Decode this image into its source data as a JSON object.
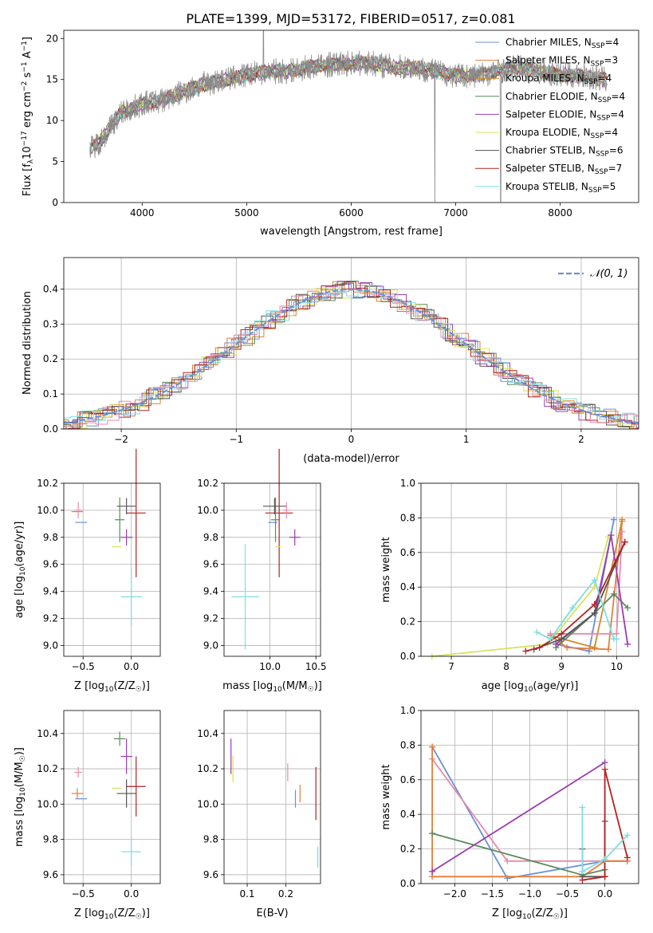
{
  "title": "PLATE=1399, MJD=53172, FIBERID=0517, z=0.081",
  "colors": {
    "Chabrier MILES": "#6b8fd6",
    "Salpeter MILES": "#e77d3a",
    "Kroupa MILES": "#d08a2a",
    "Chabrier ELODIE": "#5a8a5a",
    "Salpeter ELODIE": "#9a3cb0",
    "Kroupa ELODIE": "#d7e25a",
    "Chabrier STELIB": "#555555",
    "Salpeter STELIB": "#b22222",
    "Kroupa STELIB": "#80dce0",
    "Pink": "#e88aaa",
    "Gray": "#8a8a8a"
  },
  "chart_data": [
    {
      "type": "line",
      "xlabel": "wavelength [Angstrom, rest frame]",
      "ylabel_text": "Flux [f",
      "ylabel_sub": "λ",
      "ylabel_rest": "10",
      "ylabel_sup1": "−17",
      "ylabel_units": " erg cm",
      "ylabel_sup2": "−2",
      "ylabel_s": " s",
      "ylabel_sup3": "−1",
      "ylabel_A": " A",
      "ylabel_sup4": "−1",
      "ylabel_end": "]",
      "xlim": [
        3250,
        8750
      ],
      "ylim": [
        0,
        21
      ],
      "xticks": [
        4000,
        5000,
        6000,
        7000,
        8000
      ],
      "yticks": [
        0,
        5,
        10,
        15,
        20
      ],
      "legend": [
        {
          "name": "Chabrier MILES",
          "n": "4"
        },
        {
          "name": "Salpeter MILES",
          "n": "3"
        },
        {
          "name": "Kroupa MILES",
          "n": "4"
        },
        {
          "name": "Chabrier ELODIE",
          "n": "4"
        },
        {
          "name": "Salpeter ELODIE",
          "n": "4"
        },
        {
          "name": "Kroupa ELODIE",
          "n": "4"
        },
        {
          "name": "Chabrier STELIB",
          "n": "6"
        },
        {
          "name": "Salpeter STELIB",
          "n": "7"
        },
        {
          "name": "Kroupa STELIB",
          "n": "5"
        }
      ],
      "legend_nssp": "N",
      "legend_nssp_sub": "SSP",
      "continuum": [
        [
          3500,
          6.5
        ],
        [
          3600,
          7.5
        ],
        [
          3800,
          11
        ],
        [
          4000,
          12
        ],
        [
          4200,
          12.5
        ],
        [
          4400,
          13.5
        ],
        [
          4600,
          14.5
        ],
        [
          4800,
          15
        ],
        [
          5000,
          15.5
        ],
        [
          5200,
          16
        ],
        [
          5400,
          16
        ],
        [
          5600,
          16.5
        ],
        [
          5800,
          16.8
        ],
        [
          6000,
          17
        ],
        [
          6200,
          17
        ],
        [
          6400,
          16.5
        ],
        [
          6600,
          16.5
        ],
        [
          6800,
          16
        ],
        [
          7000,
          15.5
        ],
        [
          7200,
          15.5
        ],
        [
          7400,
          16
        ],
        [
          7600,
          16.5
        ],
        [
          7800,
          16
        ],
        [
          8000,
          15.5
        ],
        [
          8200,
          15.5
        ],
        [
          8400,
          15
        ]
      ]
    },
    {
      "type": "bar",
      "xlabel": "(data-model)/error",
      "ylabel": "Normed distribution",
      "xlim": [
        -2.5,
        2.5
      ],
      "ylim": [
        0,
        0.49
      ],
      "xticks": [
        -2,
        -1,
        0,
        1,
        2
      ],
      "xtick_labels": [
        "−2",
        "−1",
        "0",
        "1",
        "2"
      ],
      "yticks": [
        0.0,
        0.1,
        0.2,
        0.3,
        0.4
      ],
      "ytick_labels": [
        "0.0",
        "0.1",
        "0.2",
        "0.3",
        "0.4"
      ],
      "legend": "𝒩(0, 1)"
    },
    {
      "type": "scatter",
      "xlabel": "Z [log",
      "xlabel_sub": "10",
      "xlabel_end": "(Z/Z",
      "xlabel_sub2": "☉",
      "xlabel_end2": ")]",
      "ylabel": "age  [log",
      "ylabel_sub": "10",
      "ylabel_end": "(age/yr)]",
      "xlim": [
        -0.7,
        0.3
      ],
      "ylim": [
        8.92,
        10.2
      ],
      "xticks": [
        -0.5,
        0.0
      ],
      "xtick_labels": [
        "−0.5",
        "0.0"
      ],
      "yticks": [
        9.0,
        9.2,
        9.4,
        9.6,
        9.8,
        10.0,
        10.2
      ],
      "ytick_labels": [
        "9.0",
        "9.2",
        "9.4",
        "9.6",
        "9.8",
        "10.0",
        "10.2"
      ],
      "points": [
        {
          "c": "Chabrier MILES",
          "x": -0.52,
          "xe": 0.12,
          "y": 9.91,
          "ye": 0.0
        },
        {
          "c": "Salpeter MILES",
          "x": -0.56,
          "xe": 0.12,
          "y": 9.99,
          "ye": 0.0
        },
        {
          "c": "Pink",
          "x": -0.55,
          "xe": 0.08,
          "y": 10.0,
          "ye": 0.12
        },
        {
          "c": "Kroupa ELODIE",
          "x": -0.15,
          "xe": 0.1,
          "y": 9.73,
          "ye": 0.0
        },
        {
          "c": "Chabrier ELODIE",
          "x": -0.12,
          "xe": 0.1,
          "y": 9.93,
          "ye": 0.33
        },
        {
          "c": "Salpeter ELODIE",
          "x": -0.05,
          "xe": 0.12,
          "y": 9.8,
          "ye": 0.12
        },
        {
          "c": "Chabrier STELIB",
          "x": -0.05,
          "xe": 0.2,
          "y": 10.03,
          "ye": 0.12
        },
        {
          "c": "Salpeter STELIB",
          "x": 0.05,
          "xe": 0.2,
          "y": 9.98,
          "ye": 0.95
        },
        {
          "c": "Kroupa STELIB",
          "x": 0.0,
          "xe": 0.22,
          "y": 9.36,
          "ye": 0.42
        }
      ]
    },
    {
      "type": "scatter",
      "xlabel": "mass [log",
      "xlabel_sub": "10",
      "xlabel_end": "(M/M",
      "xlabel_sub2": "☉",
      "xlabel_end2": ")]",
      "xlim": [
        9.5,
        10.55
      ],
      "ylim": [
        8.92,
        10.2
      ],
      "xticks": [
        10.0,
        10.5
      ],
      "xtick_labels": [
        "10.0",
        "10.5"
      ],
      "yticks": [
        9.0,
        9.2,
        9.4,
        9.6,
        9.8,
        10.0,
        10.2
      ],
      "ytick_labels": [
        "9.0",
        "9.2",
        "9.4",
        "9.6",
        "9.8",
        "10.0",
        "10.2"
      ],
      "points": [
        {
          "c": "Kroupa STELIB",
          "x": 9.73,
          "xe": 0.3,
          "y": 9.36,
          "ye": 0.78
        },
        {
          "c": "Chabrier MILES",
          "x": 10.03,
          "xe": 0.1,
          "y": 9.91,
          "ye": 0.0
        },
        {
          "c": "Salpeter STELIB",
          "x": 10.1,
          "xe": 0.3,
          "y": 9.98,
          "ye": 0.95
        },
        {
          "c": "Chabrier ELODIE",
          "x": 10.06,
          "xe": 0.1,
          "y": 9.93,
          "ye": 0.33
        },
        {
          "c": "Chabrier STELIB",
          "x": 10.05,
          "xe": 0.25,
          "y": 10.03,
          "ye": 0.12
        },
        {
          "c": "Kroupa ELODIE",
          "x": 10.09,
          "xe": 0.06,
          "y": 9.73,
          "ye": 0.0
        },
        {
          "c": "Pink",
          "x": 10.18,
          "xe": 0.08,
          "y": 10.0,
          "ye": 0.12
        },
        {
          "c": "Salpeter ELODIE",
          "x": 10.27,
          "xe": 0.12,
          "y": 9.8,
          "ye": 0.12
        },
        {
          "c": "Salpeter MILES",
          "x": 10.1,
          "xe": 0.0,
          "y": 9.99,
          "ye": 0.0
        }
      ]
    },
    {
      "type": "line",
      "xlabel": "age  [log",
      "xlabel_sub": "10",
      "xlabel_end": "(age/yr)]",
      "ylabel": "mass weight",
      "xlim": [
        6.45,
        10.4
      ],
      "ylim": [
        0,
        1.0
      ],
      "xticks": [
        7,
        8,
        9,
        10
      ],
      "xtick_labels": [
        "7",
        "8",
        "9",
        "10"
      ],
      "yticks": [
        0.0,
        0.2,
        0.4,
        0.6,
        0.8,
        1.0
      ],
      "ytick_labels": [
        "0.0",
        "0.2",
        "0.4",
        "0.6",
        "0.8",
        "1.0"
      ],
      "series": [
        {
          "c": "Kroupa ELODIE",
          "pts": [
            [
              6.65,
              0.0
            ],
            [
              8.75,
              0.07
            ],
            [
              9.6,
              0.4
            ],
            [
              9.85,
              0.69
            ]
          ]
        },
        {
          "c": "Chabrier MILES",
          "pts": [
            [
              8.9,
              0.07
            ],
            [
              9.5,
              0.03
            ],
            [
              9.95,
              0.79
            ]
          ]
        },
        {
          "c": "Salpeter MILES",
          "pts": [
            [
              8.8,
              0.12
            ],
            [
              9.1,
              0.05
            ],
            [
              9.85,
              0.04
            ],
            [
              10.1,
              0.78
            ]
          ]
        },
        {
          "c": "Kroupa MILES",
          "pts": [
            [
              8.8,
              0.12
            ],
            [
              9.6,
              0.05
            ],
            [
              10.1,
              0.79
            ]
          ]
        },
        {
          "c": "Pink",
          "pts": [
            [
              8.8,
              0.13
            ],
            [
              9.55,
              0.13
            ],
            [
              10.0,
              0.13
            ],
            [
              10.1,
              0.72
            ]
          ]
        },
        {
          "c": "Chabrier ELODIE",
          "pts": [
            [
              8.9,
              0.05
            ],
            [
              9.6,
              0.25
            ],
            [
              9.95,
              0.36
            ],
            [
              10.2,
              0.28
            ]
          ]
        },
        {
          "c": "Salpeter ELODIE",
          "pts": [
            [
              8.9,
              0.07
            ],
            [
              9.6,
              0.25
            ],
            [
              9.9,
              0.7
            ],
            [
              10.2,
              0.07
            ]
          ]
        },
        {
          "c": "Chabrier STELIB",
          "pts": [
            [
              8.5,
              0.04
            ],
            [
              9.0,
              0.1
            ],
            [
              9.6,
              0.25
            ],
            [
              10.15,
              0.66
            ]
          ]
        },
        {
          "c": "Salpeter STELIB",
          "pts": [
            [
              8.35,
              0.03
            ],
            [
              8.6,
              0.05
            ],
            [
              9.0,
              0.13
            ],
            [
              9.6,
              0.3
            ],
            [
              10.15,
              0.66
            ]
          ]
        },
        {
          "c": "Kroupa STELIB",
          "pts": [
            [
              8.55,
              0.14
            ],
            [
              8.8,
              0.1
            ],
            [
              9.2,
              0.28
            ],
            [
              9.6,
              0.44
            ],
            [
              9.95,
              0.1
            ],
            [
              10.0,
              0.1
            ]
          ]
        }
      ]
    },
    {
      "type": "scatter",
      "xlabel": "Z [log",
      "xlabel_sub": "10",
      "xlabel_end": "(Z/Z",
      "xlabel_sub2": "☉",
      "xlabel_end2": ")]",
      "ylabel": "mass [log",
      "ylabel_sub": "10",
      "ylabel_end": "(M/M",
      "ylabel_sub2": "☉",
      "ylabel_end2": ")]",
      "xlim": [
        -0.7,
        0.3
      ],
      "ylim": [
        9.55,
        10.53
      ],
      "xticks": [
        -0.5,
        0.0
      ],
      "xtick_labels": [
        "−0.5",
        "0.0"
      ],
      "yticks": [
        9.6,
        9.8,
        10.0,
        10.2,
        10.4
      ],
      "ytick_labels": [
        "9.6",
        "9.8",
        "10.0",
        "10.2",
        "10.4"
      ],
      "points": [
        {
          "c": "Chabrier MILES",
          "x": -0.52,
          "xe": 0.12,
          "y": 10.03,
          "ye": 0.0
        },
        {
          "c": "Salpeter MILES",
          "x": -0.56,
          "xe": 0.12,
          "y": 10.06,
          "ye": 0.06
        },
        {
          "c": "Pink",
          "x": -0.55,
          "xe": 0.08,
          "y": 10.18,
          "ye": 0.06
        },
        {
          "c": "Kroupa ELODIE",
          "x": -0.15,
          "xe": 0.1,
          "y": 10.09,
          "ye": 0.0
        },
        {
          "c": "Chabrier ELODIE",
          "x": -0.12,
          "xe": 0.12,
          "y": 10.37,
          "ye": 0.08
        },
        {
          "c": "Salpeter ELODIE",
          "x": -0.05,
          "xe": 0.12,
          "y": 10.27,
          "ye": 0.2
        },
        {
          "c": "Chabrier STELIB",
          "x": -0.05,
          "xe": 0.2,
          "y": 10.06,
          "ye": 0.16
        },
        {
          "c": "Salpeter STELIB",
          "x": 0.05,
          "xe": 0.2,
          "y": 10.1,
          "ye": 0.34
        },
        {
          "c": "Kroupa STELIB",
          "x": 0.0,
          "xe": 0.2,
          "y": 9.73,
          "ye": 0.16
        }
      ]
    },
    {
      "type": "scatter",
      "xlabel": "E(B-V)",
      "xlim": [
        0.04,
        0.29
      ],
      "ylim": [
        9.55,
        10.53
      ],
      "xticks": [
        0.1,
        0.2
      ],
      "xtick_labels": [
        "0.1",
        "0.2"
      ],
      "yticks": [
        9.6,
        9.8,
        10.0,
        10.2,
        10.4
      ],
      "ytick_labels": [
        "9.6",
        "9.8",
        "10.0",
        "10.2",
        "10.4"
      ],
      "points": [
        {
          "c": "Salpeter ELODIE",
          "x": 0.058,
          "y": 10.27,
          "ye": 0.2
        },
        {
          "c": "Kroupa ELODIE",
          "x": 0.063,
          "y": 10.2,
          "ye": 0.15
        },
        {
          "c": "Pink",
          "x": 0.205,
          "y": 10.18,
          "ye": 0.1
        },
        {
          "c": "Chabrier MILES",
          "x": 0.225,
          "y": 10.03,
          "ye": 0.1
        },
        {
          "c": "Salpeter MILES",
          "x": 0.237,
          "y": 10.06,
          "ye": 0.1
        },
        {
          "c": "Salpeter STELIB",
          "x": 0.278,
          "y": 10.06,
          "ye": 0.3
        },
        {
          "c": "Kroupa STELIB",
          "x": 0.283,
          "y": 9.7,
          "ye": 0.12
        }
      ]
    },
    {
      "type": "line",
      "xlabel": "Z [log",
      "xlabel_sub": "10",
      "xlabel_end": "(Z/Z",
      "xlabel_sub2": "☉",
      "xlabel_end2": ")]",
      "ylabel": "mass weight",
      "xlim": [
        -2.45,
        0.45
      ],
      "ylim": [
        0,
        1.0
      ],
      "xticks": [
        -2.0,
        -1.5,
        -1.0,
        -0.5,
        0.0
      ],
      "xtick_labels": [
        "−2.0",
        "−1.5",
        "−1.0",
        "−0.5",
        "0.0"
      ],
      "yticks": [
        0.0,
        0.2,
        0.4,
        0.6,
        0.8,
        1.0
      ],
      "ytick_labels": [
        "0.0",
        "0.2",
        "0.4",
        "0.6",
        "0.8",
        "1.0"
      ],
      "series": [
        {
          "c": "Chabrier MILES",
          "pts": [
            [
              -2.3,
              0.79
            ],
            [
              -1.3,
              0.03
            ],
            [
              0.0,
              0.13
            ],
            [
              0.3,
              0.13
            ]
          ]
        },
        {
          "c": "Pink",
          "pts": [
            [
              -2.3,
              0.72
            ],
            [
              -1.3,
              0.13
            ],
            [
              0.0,
              0.13
            ],
            [
              0.3,
              0.13
            ]
          ]
        },
        {
          "c": "Salpeter MILES",
          "pts": [
            [
              -2.3,
              0.79
            ],
            [
              -2.3,
              0.04
            ],
            [
              -0.3,
              0.04
            ],
            [
              0.0,
              0.13
            ],
            [
              0.3,
              0.13
            ]
          ]
        },
        {
          "c": "Chabrier ELODIE",
          "pts": [
            [
              -2.3,
              0.29
            ],
            [
              -0.3,
              0.05
            ],
            [
              0.0,
              0.08
            ]
          ]
        },
        {
          "c": "Salpeter ELODIE",
          "pts": [
            [
              -2.3,
              0.07
            ],
            [
              0.0,
              0.7
            ]
          ]
        },
        {
          "c": "Chabrier STELIB",
          "pts": [
            [
              -0.3,
              0.2
            ],
            [
              -0.3,
              0.04
            ],
            [
              0.0,
              0.04
            ],
            [
              0.0,
              0.36
            ]
          ]
        },
        {
          "c": "Salpeter STELIB",
          "pts": [
            [
              -0.3,
              0.02
            ],
            [
              0.0,
              0.04
            ],
            [
              0.0,
              0.66
            ],
            [
              0.3,
              0.15
            ]
          ]
        },
        {
          "c": "Kroupa STELIB",
          "pts": [
            [
              -0.3,
              0.44
            ],
            [
              -0.3,
              0.07
            ],
            [
              0.0,
              0.14
            ],
            [
              0.3,
              0.28
            ]
          ]
        }
      ]
    }
  ]
}
